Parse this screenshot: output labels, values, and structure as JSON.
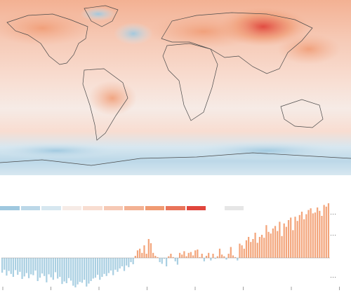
{
  "colors": {
    "scale": [
      "#9fc8df",
      "#bcd8e8",
      "#d7e7f0",
      "#f6ebe6",
      "#f8ddd1",
      "#f6c9b5",
      "#f3b193",
      "#f09a72",
      "#e9745a",
      "#e0453c"
    ],
    "no_data": "#e6e6e6",
    "bar_warm": "#f3a57b",
    "bar_cool": "#a9cfe2",
    "land_outline": "#4a4a4a"
  },
  "chart_data": {
    "type": "bar",
    "title": "",
    "xlabel": "",
    "ylabel": "",
    "baseline": 0,
    "ylim": [
      -0.8,
      1.6
    ],
    "note": "",
    "values": [
      -0.35,
      -0.28,
      -0.42,
      -0.31,
      -0.38,
      -0.45,
      -0.29,
      -0.4,
      -0.33,
      -0.5,
      -0.44,
      -0.36,
      -0.48,
      -0.39,
      -0.41,
      -0.3,
      -0.55,
      -0.47,
      -0.37,
      -0.43,
      -0.58,
      -0.39,
      -0.46,
      -0.52,
      -0.34,
      -0.49,
      -0.45,
      -0.62,
      -0.56,
      -0.6,
      -0.48,
      -0.54,
      -0.66,
      -0.7,
      -0.63,
      -0.57,
      -0.59,
      -0.52,
      -0.68,
      -0.61,
      -0.55,
      -0.49,
      -0.47,
      -0.4,
      -0.52,
      -0.45,
      -0.38,
      -0.43,
      -0.36,
      -0.3,
      -0.41,
      -0.28,
      -0.33,
      -0.25,
      -0.2,
      -0.31,
      -0.18,
      -0.22,
      -0.1,
      -0.15,
      0.05,
      0.18,
      0.22,
      0.12,
      0.3,
      0.1,
      0.45,
      0.35,
      0.12,
      0.05,
      0.02,
      -0.1,
      -0.14,
      -0.02,
      -0.2,
      0.04,
      0.1,
      0.02,
      -0.08,
      -0.16,
      0.12,
      0.08,
      0.16,
      0.04,
      0.12,
      0.14,
      0.06,
      0.18,
      0.2,
      0.02,
      0.1,
      -0.08,
      0.05,
      0.12,
      -0.06,
      0.1,
      -0.02,
      0.04,
      0.22,
      0.08,
      0.04,
      -0.04,
      0.1,
      0.26,
      0.06,
      0.02,
      -0.06,
      0.34,
      0.3,
      0.22,
      0.42,
      0.5,
      0.38,
      0.45,
      0.6,
      0.36,
      0.5,
      0.55,
      0.48,
      0.78,
      0.62,
      0.58,
      0.7,
      0.76,
      0.64,
      0.86,
      0.52,
      0.82,
      0.74,
      0.9,
      0.96,
      0.66,
      0.98,
      0.88,
      1.02,
      1.1,
      0.92,
      1.04,
      1.14,
      1.18,
      1.06,
      1.08,
      1.2,
      1.12,
      1.0,
      1.26,
      1.22,
      1.3
    ]
  }
}
